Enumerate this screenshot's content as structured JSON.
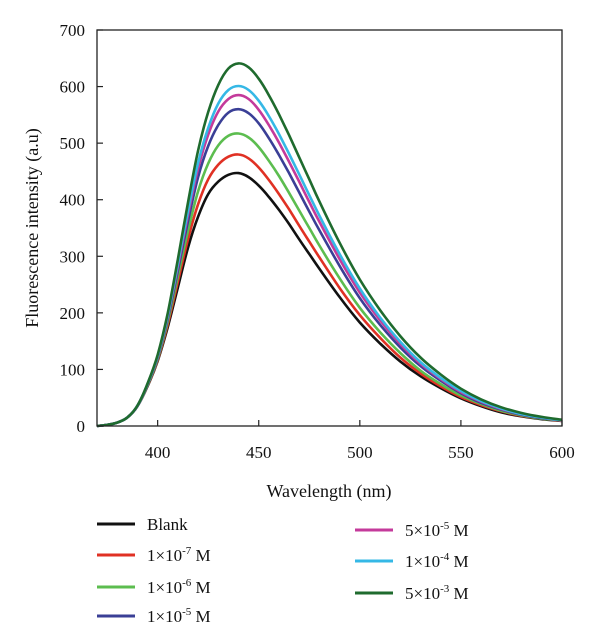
{
  "chart_data": {
    "type": "line",
    "xlabel": "Wavelength (nm)",
    "ylabel": "Fluorescence intensity (a.u)",
    "xlim": [
      370,
      600
    ],
    "ylim": [
      0,
      700
    ],
    "x_ticks": [
      400,
      450,
      500,
      550,
      600
    ],
    "y_ticks": [
      0,
      100,
      200,
      300,
      400,
      500,
      600,
      700
    ],
    "grid": false,
    "legend_position": "bottom",
    "x": [
      370,
      375,
      380,
      385,
      390,
      395,
      400,
      405,
      410,
      415,
      420,
      425,
      430,
      435,
      440,
      445,
      450,
      455,
      460,
      465,
      470,
      475,
      480,
      490,
      500,
      510,
      520,
      530,
      540,
      550,
      560,
      570,
      580,
      590,
      600
    ],
    "series": [
      {
        "name": "Blank",
        "color": "#111111",
        "values": [
          0,
          2,
          6,
          15,
          35,
          70,
          115,
          175,
          245,
          315,
          370,
          410,
          432,
          444,
          447,
          440,
          425,
          405,
          382,
          357,
          330,
          304,
          278,
          228,
          183,
          146,
          114,
          88,
          67,
          49,
          35,
          24,
          17,
          12,
          9
        ]
      },
      {
        "name": "1×10⁻⁷ M",
        "color": "#e03124",
        "values": [
          0,
          2,
          6,
          15,
          35,
          71,
          117,
          180,
          255,
          330,
          392,
          436,
          462,
          476,
          480,
          473,
          457,
          435,
          410,
          383,
          354,
          326,
          298,
          244,
          196,
          156,
          121,
          93,
          70,
          51,
          37,
          26,
          18,
          13,
          9
        ]
      },
      {
        "name": "1×10⁻⁶ M",
        "color": "#5cbd4f",
        "values": [
          0,
          2,
          6,
          15,
          35,
          72,
          119,
          185,
          265,
          345,
          415,
          464,
          496,
          513,
          517,
          510,
          493,
          469,
          442,
          412,
          381,
          350,
          319,
          261,
          209,
          166,
          129,
          98,
          74,
          54,
          39,
          27,
          19,
          13,
          10
        ]
      },
      {
        "name": "1×10⁻⁵ M",
        "color": "#3a3f96",
        "values": [
          0,
          2,
          6,
          15,
          35,
          73,
          121,
          190,
          275,
          362,
          440,
          495,
          532,
          554,
          560,
          553,
          535,
          509,
          479,
          447,
          413,
          379,
          346,
          283,
          226,
          179,
          139,
          106,
          80,
          58,
          41,
          29,
          20,
          14,
          10
        ]
      },
      {
        "name": "5×10⁻⁵ M",
        "color": "#c43a9b",
        "values": [
          0,
          2,
          6,
          15,
          36,
          74,
          123,
          194,
          282,
          373,
          455,
          515,
          556,
          578,
          585,
          578,
          559,
          532,
          501,
          467,
          432,
          396,
          361,
          295,
          236,
          187,
          145,
          110,
          83,
          60,
          43,
          30,
          21,
          15,
          10
        ]
      },
      {
        "name": "1×10⁻⁴ M",
        "color": "#35b8e6",
        "values": [
          0,
          2,
          6,
          15,
          36,
          74,
          124,
          196,
          287,
          380,
          465,
          527,
          570,
          594,
          601,
          594,
          575,
          548,
          516,
          481,
          445,
          408,
          372,
          304,
          243,
          192,
          149,
          113,
          85,
          62,
          44,
          31,
          21,
          15,
          10
        ]
      },
      {
        "name": "5×10⁻³ M",
        "color": "#1f6b2e",
        "values": [
          0,
          2,
          6,
          15,
          36,
          75,
          126,
          200,
          295,
          395,
          487,
          555,
          603,
          632,
          641,
          634,
          614,
          585,
          551,
          514,
          475,
          436,
          397,
          324,
          259,
          205,
          159,
          121,
          91,
          66,
          47,
          33,
          23,
          16,
          11
        ]
      }
    ]
  },
  "legend": {
    "items": [
      {
        "mantissa": "Blank",
        "exp": "",
        "unit": "",
        "color": "#111111"
      },
      {
        "mantissa": "1×10",
        "exp": "-7",
        "unit": " M",
        "color": "#e03124"
      },
      {
        "mantissa": "1×10",
        "exp": "-6",
        "unit": " M",
        "color": "#5cbd4f"
      },
      {
        "mantissa": "1×10",
        "exp": "-5",
        "unit": " M",
        "color": "#3a3f96"
      },
      {
        "mantissa": "5×10",
        "exp": "-5",
        "unit": " M",
        "color": "#c43a9b"
      },
      {
        "mantissa": "1×10",
        "exp": "-4",
        "unit": " M",
        "color": "#35b8e6"
      },
      {
        "mantissa": "5×10",
        "exp": "-3",
        "unit": " M",
        "color": "#1f6b2e"
      }
    ]
  }
}
